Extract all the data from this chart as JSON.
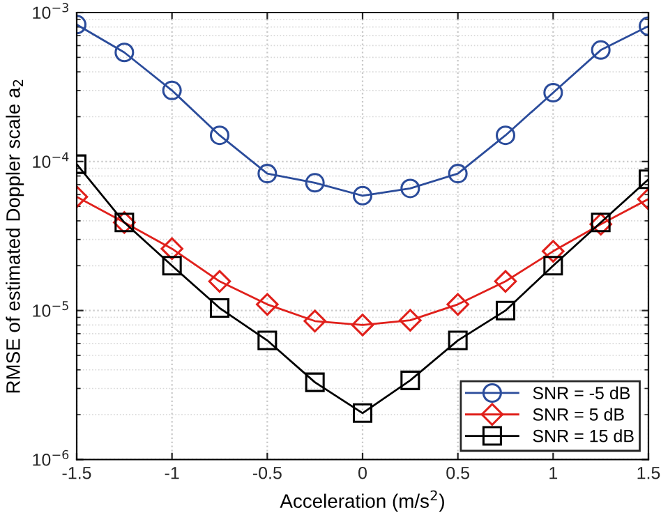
{
  "chart_data": {
    "type": "line",
    "xlabel": "Acceleration (m/s$^{2}$)",
    "ylabel": "RMSE of estimated Doppler scale a$_{2}$",
    "x": [
      -1.5,
      -1.25,
      -1,
      -0.75,
      -0.5,
      -0.25,
      0,
      0.25,
      0.5,
      0.75,
      1,
      1.25,
      1.5
    ],
    "series": [
      {
        "name": "SNR = -5 dB",
        "color": "#2b4c9b",
        "marker": "circle",
        "values": [
          0.00083,
          0.00054,
          0.0003,
          0.00015,
          8.3e-05,
          7.2e-05,
          5.9e-05,
          6.6e-05,
          8.3e-05,
          0.00015,
          0.00029,
          0.00056,
          0.00081
        ]
      },
      {
        "name": "SNR = 5 dB",
        "color": "#e0201b",
        "marker": "diamond",
        "values": [
          5.8e-05,
          3.9e-05,
          2.6e-05,
          1.57e-05,
          1.1e-05,
          8.5e-06,
          8e-06,
          8.6e-06,
          1.1e-05,
          1.57e-05,
          2.5e-05,
          3.8e-05,
          5.6e-05
        ]
      },
      {
        "name": "SNR = 15 dB",
        "color": "#000000",
        "marker": "square",
        "values": [
          9.6e-05,
          3.9e-05,
          2e-05,
          1.04e-05,
          6.3e-06,
          3.3e-06,
          2.05e-06,
          3.4e-06,
          6.3e-06,
          1e-05,
          2e-05,
          3.9e-05,
          7.6e-05
        ]
      }
    ],
    "log": "y",
    "xlim": [
      -1.5,
      1.5
    ],
    "xticks": [
      -1.5,
      -1,
      -0.5,
      0,
      0.5,
      1,
      1.5
    ],
    "ylim": [
      1e-06,
      0.001
    ],
    "yticks": [
      {
        "value": 1e-06,
        "label": "10$^{−6}$"
      },
      {
        "value": 1e-05,
        "label": "10$^{−5}$"
      },
      {
        "value": 0.0001,
        "label": "10$^{−4}$"
      },
      {
        "value": 0.001,
        "label": "10$^{−3}$"
      }
    ],
    "grid": true,
    "legend": "bottom right",
    "line_style": "solid"
  }
}
